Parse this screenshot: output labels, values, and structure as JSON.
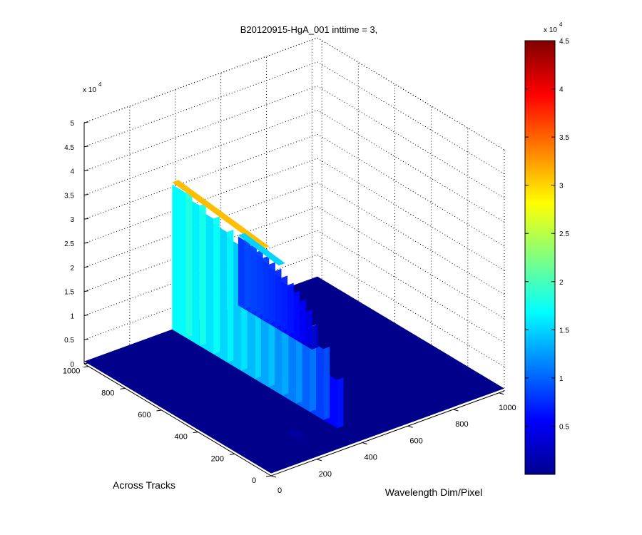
{
  "chart_data": {
    "type": "surface3d",
    "title": "B20120915-HgA_001 inttime = 3,",
    "xlabel": "Wavelength Dim/Pixel",
    "ylabel": "Across Tracks",
    "zlabel": "",
    "x_range": [
      0,
      1024
    ],
    "y_range": [
      0,
      1024
    ],
    "zlim": [
      0,
      50000
    ],
    "x_ticks": [
      0,
      200,
      400,
      600,
      800,
      1000
    ],
    "y_ticks": [
      0,
      200,
      400,
      600,
      800,
      1000
    ],
    "z_ticks": [
      0,
      0.5,
      1,
      1.5,
      2,
      2.5,
      3,
      3.5,
      4,
      4.5,
      5
    ],
    "z_exponent_label": "x 10",
    "z_exponent": "4",
    "colormap": "jet",
    "colorbar": {
      "range": [
        0,
        45000
      ],
      "ticks": [
        0.5,
        1,
        1.5,
        2,
        2.5,
        3,
        3.5,
        4,
        4.5
      ],
      "exponent_label": "x 10",
      "exponent": "4",
      "placement": "right"
    },
    "grid": true,
    "baseline": 500,
    "peaks": [
      {
        "x": 400,
        "y_start": 120,
        "y_end": 1024,
        "z_max": 31000
      },
      {
        "x": 690,
        "y_start": 620,
        "y_end": 1024,
        "z_max": 15000
      },
      {
        "x": 230,
        "y_start": 80,
        "y_end": 180,
        "z_max": 1500
      }
    ]
  }
}
